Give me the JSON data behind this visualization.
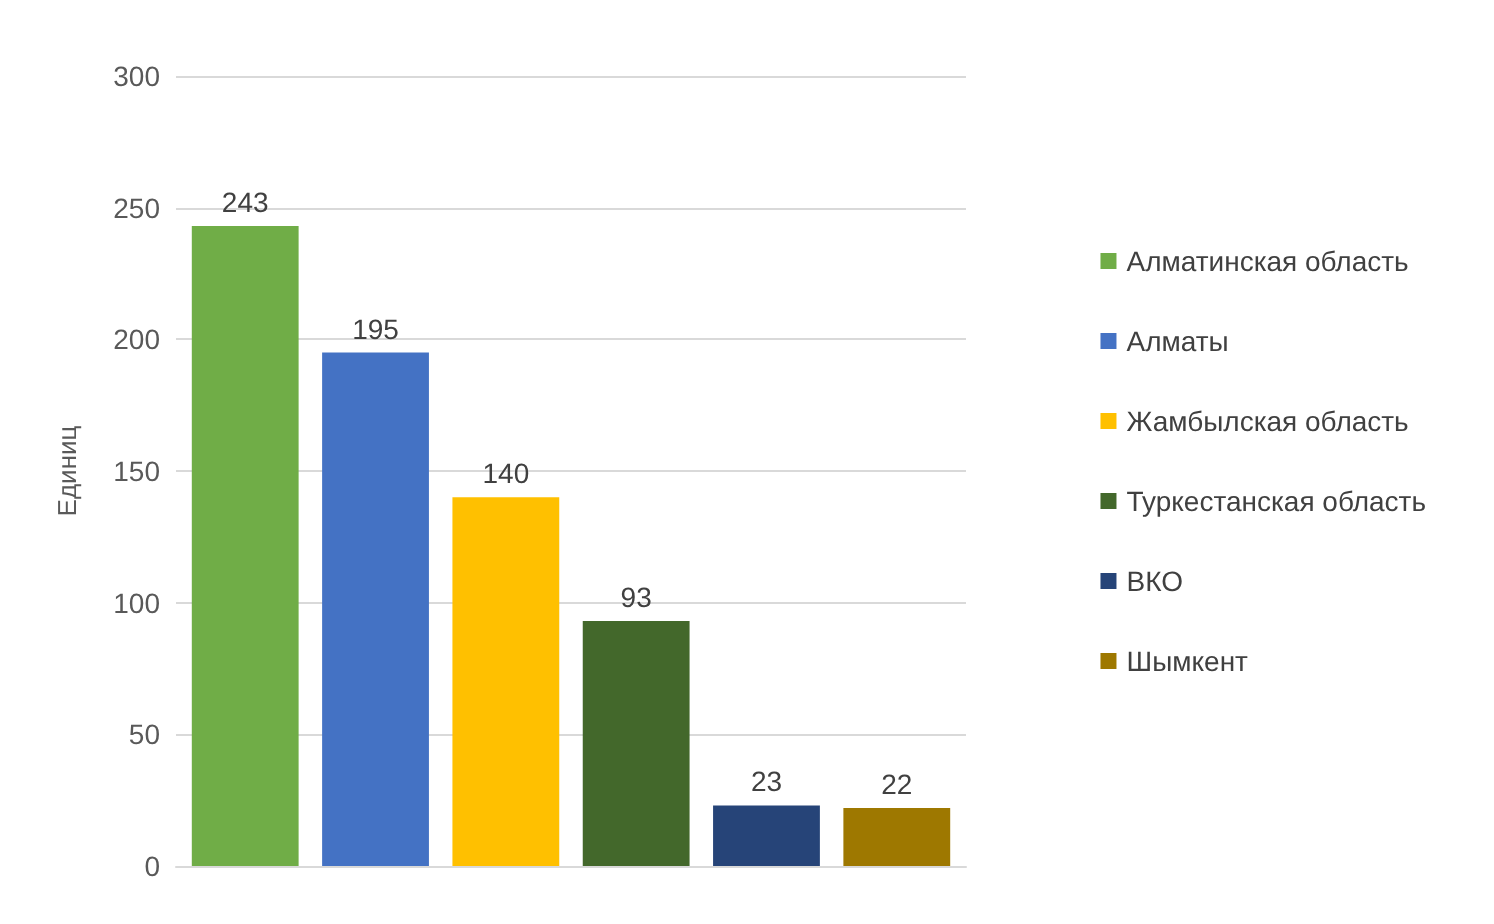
{
  "chart_data": {
    "type": "bar",
    "ylabel": "Единиц",
    "categories": [
      null
    ],
    "series": [
      {
        "name": "Алматинская область",
        "color": "#70ad47",
        "values": [
          243
        ]
      },
      {
        "name": "Алматы",
        "color": "#4472c4",
        "values": [
          195
        ]
      },
      {
        "name": "Жамбылская область",
        "color": "#ffc000",
        "values": [
          140
        ]
      },
      {
        "name": "Туркестанская область",
        "color": "#43682b",
        "values": [
          93
        ]
      },
      {
        "name": "ВКО",
        "color": "#264478",
        "values": [
          23
        ]
      },
      {
        "name": "Шымкент",
        "color": "#9e7800",
        "values": [
          22
        ]
      }
    ],
    "ylim": [
      0,
      300
    ],
    "yticks": [
      0,
      50,
      100,
      150,
      200,
      250,
      300
    ],
    "grid": "y",
    "legend": "right",
    "data_labels": true
  }
}
